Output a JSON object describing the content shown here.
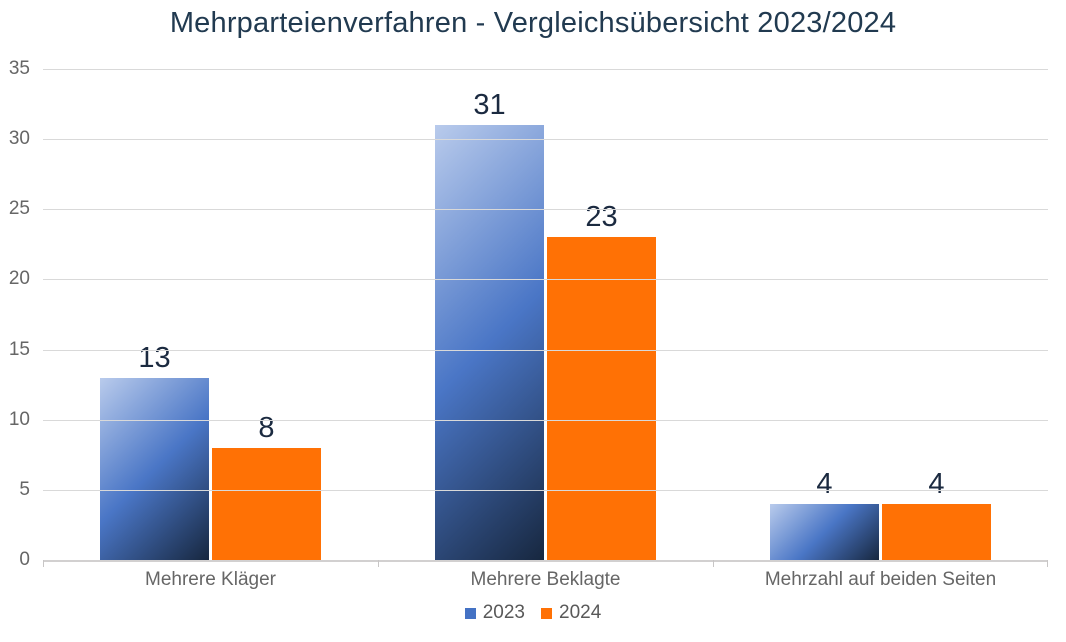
{
  "chart_data": {
    "type": "bar",
    "title": "Mehrparteienverfahren - Vergleichsübersicht 2023/2024",
    "categories": [
      "Mehrere Kläger",
      "Mehrere Beklagte",
      "Mehrzahl auf beiden Seiten"
    ],
    "series": [
      {
        "name": "2023",
        "values": [
          13,
          31,
          4
        ],
        "color": "#4472c4",
        "gradient": [
          "#b9cbec",
          "#4a76c6",
          "#17273f"
        ]
      },
      {
        "name": "2024",
        "values": [
          8,
          23,
          4
        ],
        "color": "#ff7105"
      }
    ],
    "xlabel": "",
    "ylabel": "",
    "ylim": [
      0,
      35
    ],
    "yticks": [
      0,
      5,
      10,
      15,
      20,
      25,
      30,
      35
    ],
    "grid": "horizontal",
    "legend_position": "bottom",
    "colors": {
      "title_text": "#213a50",
      "value_label_text": "#1b2a40",
      "axis_text": "#666666",
      "gridline": "#d9d9d9",
      "axis_line": "#d2d0d0",
      "background": "#ffffff"
    }
  }
}
